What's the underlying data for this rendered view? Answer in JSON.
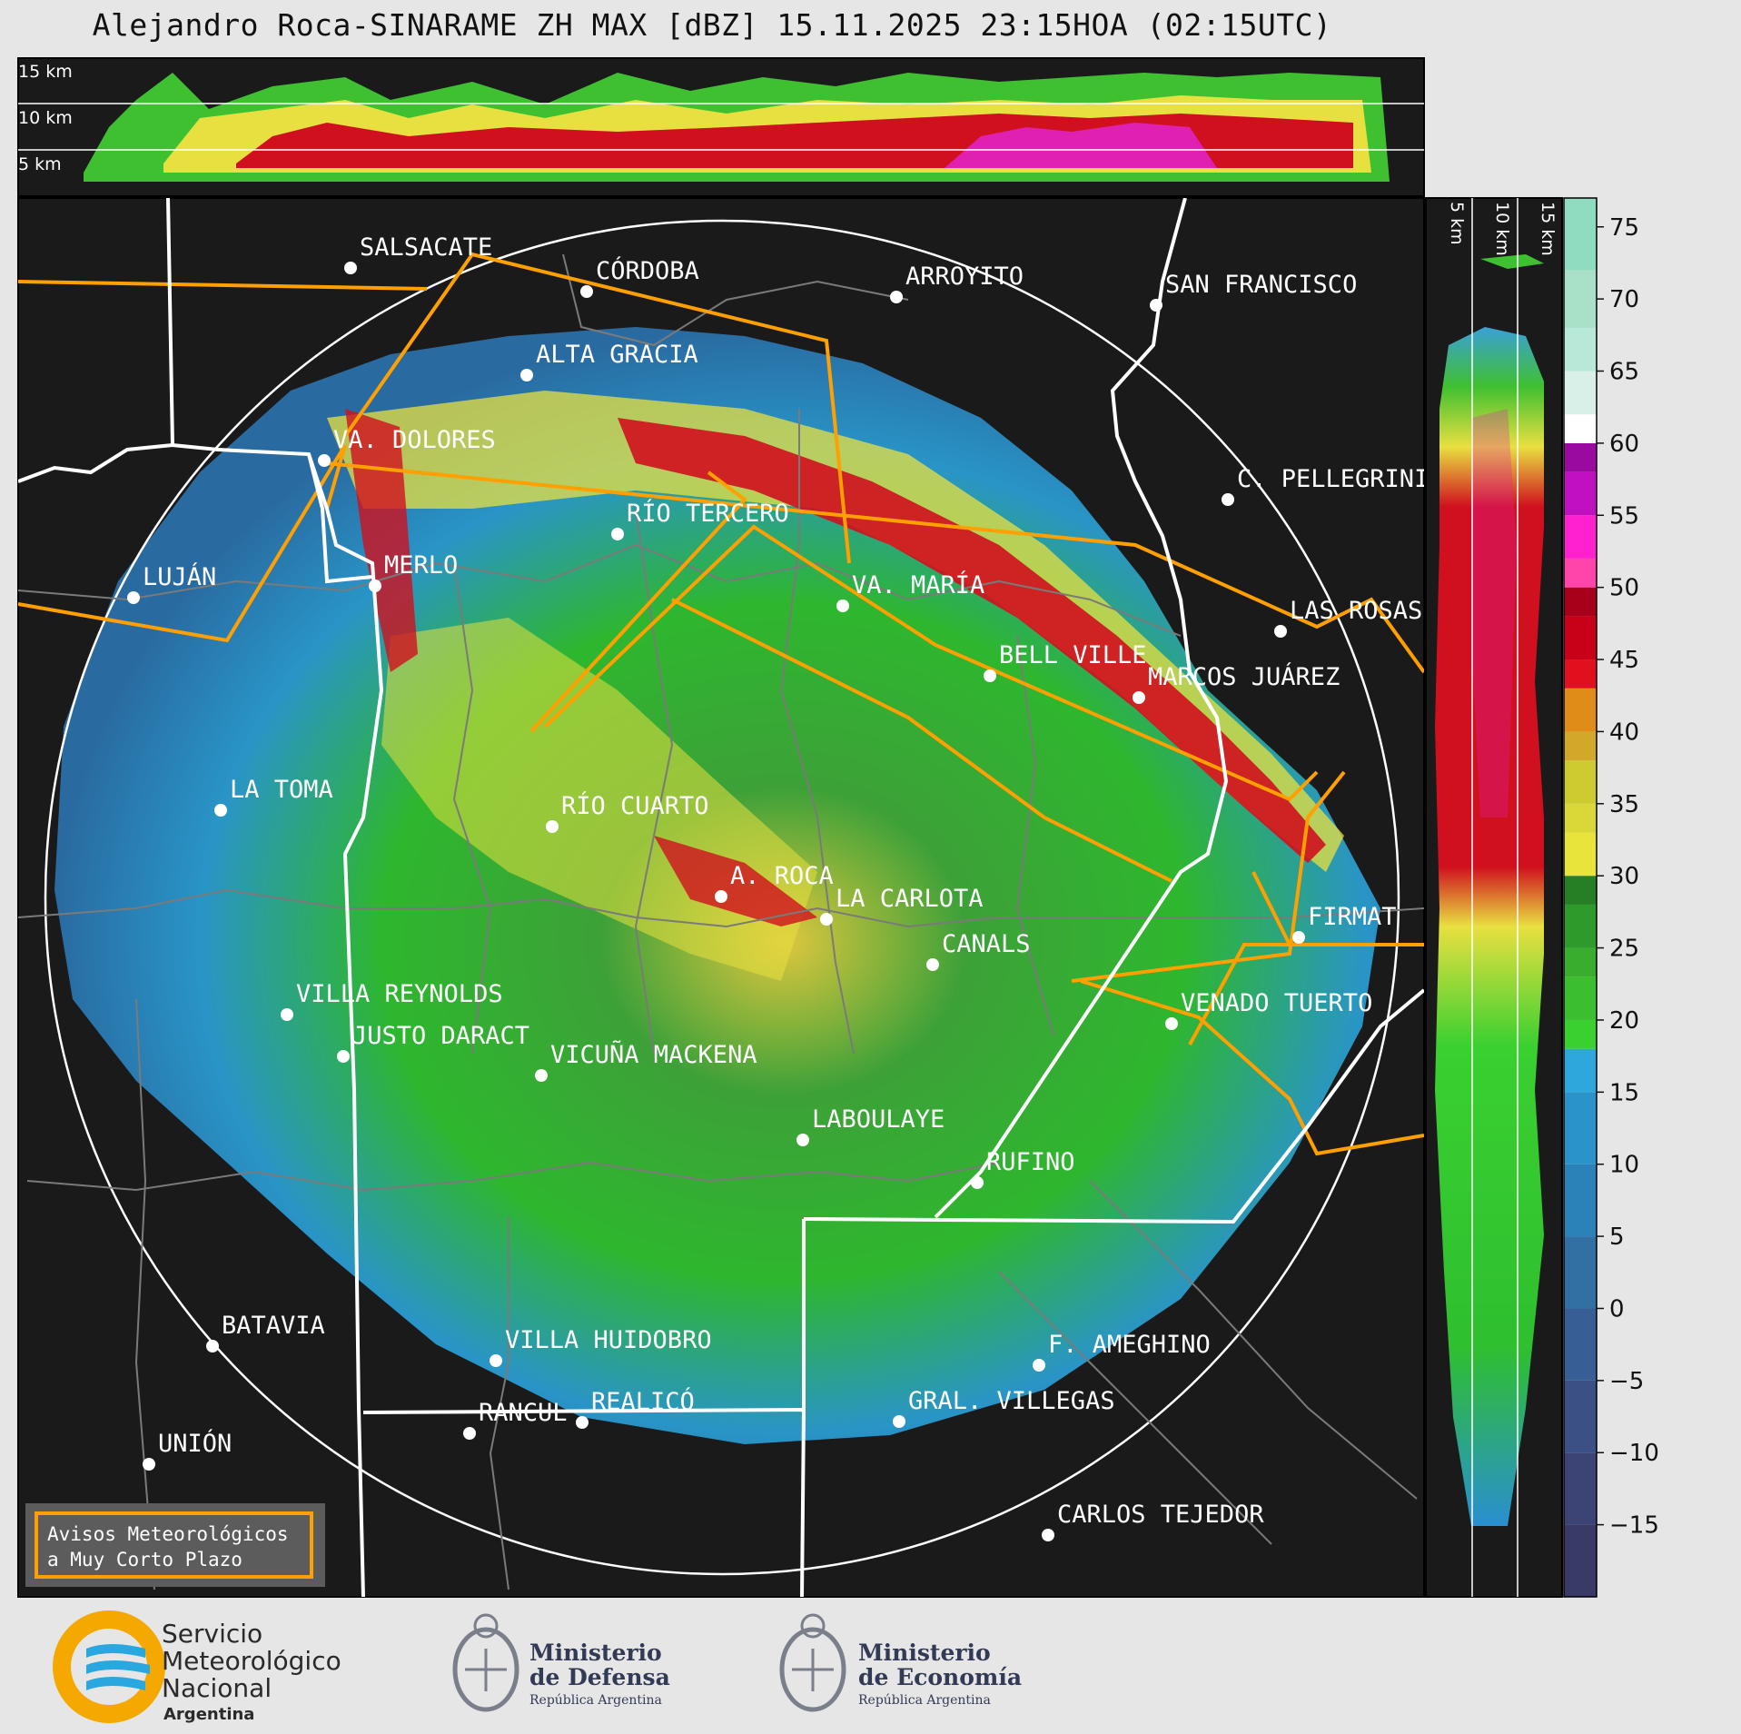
{
  "title": "Alejandro Roca-SINARAME ZH MAX [dBZ] 15.11.2025 23:15HOA (02:15UTC)",
  "colors": {
    "background": "#1a1a1a",
    "borders_province": "#ffffff",
    "borders_department": "#7a7a7a",
    "roads": "#ff9f00",
    "range_ring": "#ffffff"
  },
  "radar": {
    "name": "A. ROCA"
  },
  "cities": [
    {
      "name": "SALSACATE"
    },
    {
      "name": "CÓRDOBA"
    },
    {
      "name": "ARROYITO"
    },
    {
      "name": "SAN FRANCISCO"
    },
    {
      "name": "ALTA GRACIA"
    },
    {
      "name": "VA. DOLORES"
    },
    {
      "name": "C. PELLEGRINI"
    },
    {
      "name": "RÍO TERCERO"
    },
    {
      "name": "LUJÁN"
    },
    {
      "name": "MERLO"
    },
    {
      "name": "VA. MARÍA"
    },
    {
      "name": "LAS ROSAS"
    },
    {
      "name": "BELL VILLE"
    },
    {
      "name": "MARCOS JUÁREZ"
    },
    {
      "name": "LA TOMA"
    },
    {
      "name": "RÍO CUARTO"
    },
    {
      "name": "A. ROCA"
    },
    {
      "name": "LA CARLOTA"
    },
    {
      "name": "FIRMAT"
    },
    {
      "name": "CANALS"
    },
    {
      "name": "VILLA REYNOLDS"
    },
    {
      "name": "VENADO TUERTO"
    },
    {
      "name": "JUSTO DARACT"
    },
    {
      "name": "VICUÑA MACKENA"
    },
    {
      "name": "LABOULAYE"
    },
    {
      "name": "RUFINO"
    },
    {
      "name": "BATAVIA"
    },
    {
      "name": "VILLA HUIDOBRO"
    },
    {
      "name": "F. AMEGHINO"
    },
    {
      "name": "RANCUL"
    },
    {
      "name": "REALICÓ"
    },
    {
      "name": "GRAL. VILLEGAS"
    },
    {
      "name": "UNIÓN"
    },
    {
      "name": "CARLOS TEJEDOR"
    }
  ],
  "height_labels": {
    "h15": "15 km",
    "h10": "10 km",
    "h5": "5 km"
  },
  "colorbar": {
    "unit": "dBZ",
    "ticks": [
      "75",
      "70",
      "65",
      "60",
      "55",
      "50",
      "45",
      "40",
      "35",
      "30",
      "25",
      "20",
      "15",
      "10",
      "5",
      "0",
      "−5",
      "−10",
      "−15"
    ],
    "range": [
      -20,
      77
    ]
  },
  "notice": {
    "line1": "Avisos Meteorológicos",
    "line2": "a Muy Corto Plazo"
  },
  "logos": {
    "smn": {
      "line1": "Servicio",
      "line2": "Meteorológico",
      "line3": "Nacional",
      "line4": "Argentina"
    },
    "defensa": {
      "line1": "Ministerio",
      "line2": "de Defensa",
      "line3": "República Argentina"
    },
    "economia": {
      "line1": "Ministerio",
      "line2": "de Economía",
      "line3": "República Argentina"
    }
  }
}
